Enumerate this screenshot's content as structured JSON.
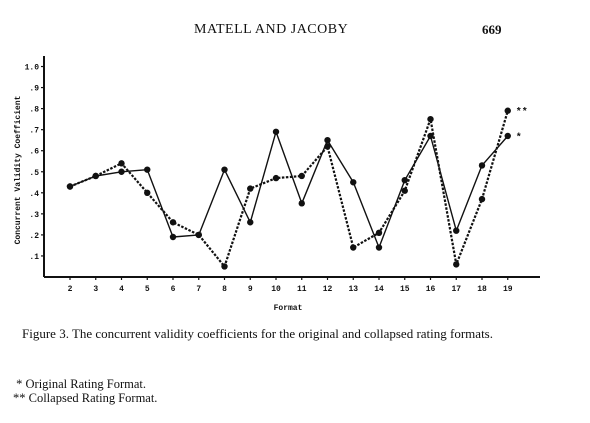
{
  "header": {
    "running_head": "MATELL AND JACOBY",
    "page_number": "669"
  },
  "chart_data": {
    "type": "line",
    "xlabel": "Format",
    "ylabel": "Concurrent Validity Coefficient",
    "x": [
      2,
      3,
      4,
      5,
      6,
      7,
      8,
      9,
      10,
      11,
      12,
      13,
      14,
      15,
      16,
      17,
      18,
      19
    ],
    "xticklabels": [
      "2",
      "3",
      "4",
      "5",
      "6",
      "7",
      "8",
      "9",
      "10",
      "11",
      "12",
      "13",
      "14",
      "15",
      "16",
      "17",
      "18",
      "19"
    ],
    "yticks": [
      0.1,
      0.2,
      0.3,
      0.4,
      0.5,
      0.6,
      0.7,
      0.8,
      0.9,
      1.0
    ],
    "yticklabels": [
      ".1",
      ".2",
      ".3",
      ".4",
      ".5",
      ".6",
      ".7",
      ".8",
      ".9",
      "1.0"
    ],
    "ylim": [
      0.0,
      1.05
    ],
    "grid": false,
    "series": [
      {
        "marker": "*",
        "style": "solid",
        "values": [
          0.43,
          0.48,
          0.5,
          0.51,
          0.19,
          0.2,
          0.51,
          0.26,
          0.69,
          0.35,
          0.65,
          0.45,
          0.14,
          0.46,
          0.67,
          0.22,
          0.53,
          0.67
        ]
      },
      {
        "marker": "**",
        "style": "dashed",
        "values": [
          0.43,
          0.48,
          0.54,
          0.4,
          0.26,
          0.2,
          0.05,
          0.42,
          0.47,
          0.48,
          0.62,
          0.14,
          0.21,
          0.41,
          0.75,
          0.06,
          0.37,
          0.79
        ]
      }
    ]
  },
  "caption": "Figure 3.  The concurrent validity coefficients for the original and collapsed rating formats.",
  "notes": [
    " * Original Rating Format.",
    "** Collapsed Rating Format."
  ]
}
